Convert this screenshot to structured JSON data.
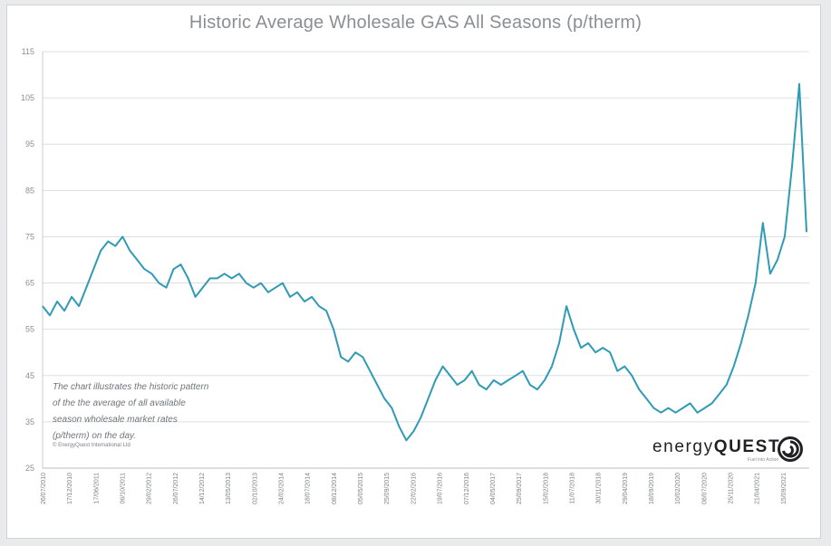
{
  "chart_data": {
    "type": "line",
    "title": "Historic Average Wholesale GAS All Seasons (p/therm)",
    "xlabel": "",
    "ylabel": "",
    "ylim": [
      25,
      115
    ],
    "yticks": [
      25,
      35,
      45,
      55,
      65,
      75,
      85,
      95,
      105,
      115
    ],
    "ytick_labels": [
      "25",
      "35",
      "45",
      "55",
      "65",
      "75",
      "85",
      "95",
      "105",
      "115"
    ],
    "xtick_labels": [
      "26/07/2010",
      "17/12/2010",
      "17/06/2011",
      "06/10/2011",
      "29/02/2012",
      "26/07/2012",
      "14/12/2012",
      "13/05/2013",
      "02/10/2013",
      "24/02/2014",
      "18/07/2014",
      "08/12/2014",
      "05/05/2015",
      "25/09/2015",
      "22/02/2016",
      "19/07/2016",
      "07/12/2016",
      "04/05/2017",
      "25/09/2017",
      "15/02/2018",
      "11/07/2018",
      "30/11/2018",
      "29/04/2019",
      "18/09/2019",
      "10/02/2020",
      "08/07/2020",
      "25/11/2020",
      "21/04/2021",
      "15/09/2021"
    ],
    "grid": true,
    "legend": "none",
    "series_color": "#2f9bb5",
    "series": [
      {
        "values": [
          60,
          58,
          61,
          59,
          62,
          60,
          64,
          68,
          72,
          74,
          73,
          75,
          72,
          70,
          68,
          67,
          65,
          64,
          68,
          69,
          66,
          62,
          64,
          66,
          66,
          67,
          66,
          67,
          65,
          64,
          65,
          63,
          64,
          65,
          62,
          63,
          61,
          62,
          60,
          59,
          55,
          49,
          48,
          50,
          49,
          46,
          43,
          40,
          38,
          34,
          31,
          33,
          36,
          40,
          44,
          47,
          45,
          43,
          44,
          46,
          43,
          42,
          44,
          43,
          44,
          45,
          46,
          43,
          42,
          44,
          47,
          52,
          60,
          55,
          51,
          52,
          50,
          51,
          50,
          46,
          47,
          45,
          42,
          40,
          38,
          37,
          38,
          37,
          38,
          39,
          37,
          38,
          39,
          41,
          43,
          47,
          52,
          58,
          65,
          78,
          67,
          70,
          75,
          90,
          108,
          76
        ]
      }
    ],
    "annotation": [
      "The chart illustrates the historic pattern",
      "of the the average of all available",
      "season wholesale market rates",
      "(p/therm) on the day."
    ],
    "annotation_small": "© EnergyQuest International Ltd",
    "logo": {
      "word1": "energy",
      "word2": "QUEST",
      "tagline": "Fuel into Action",
      "color": "#1f2124"
    }
  }
}
